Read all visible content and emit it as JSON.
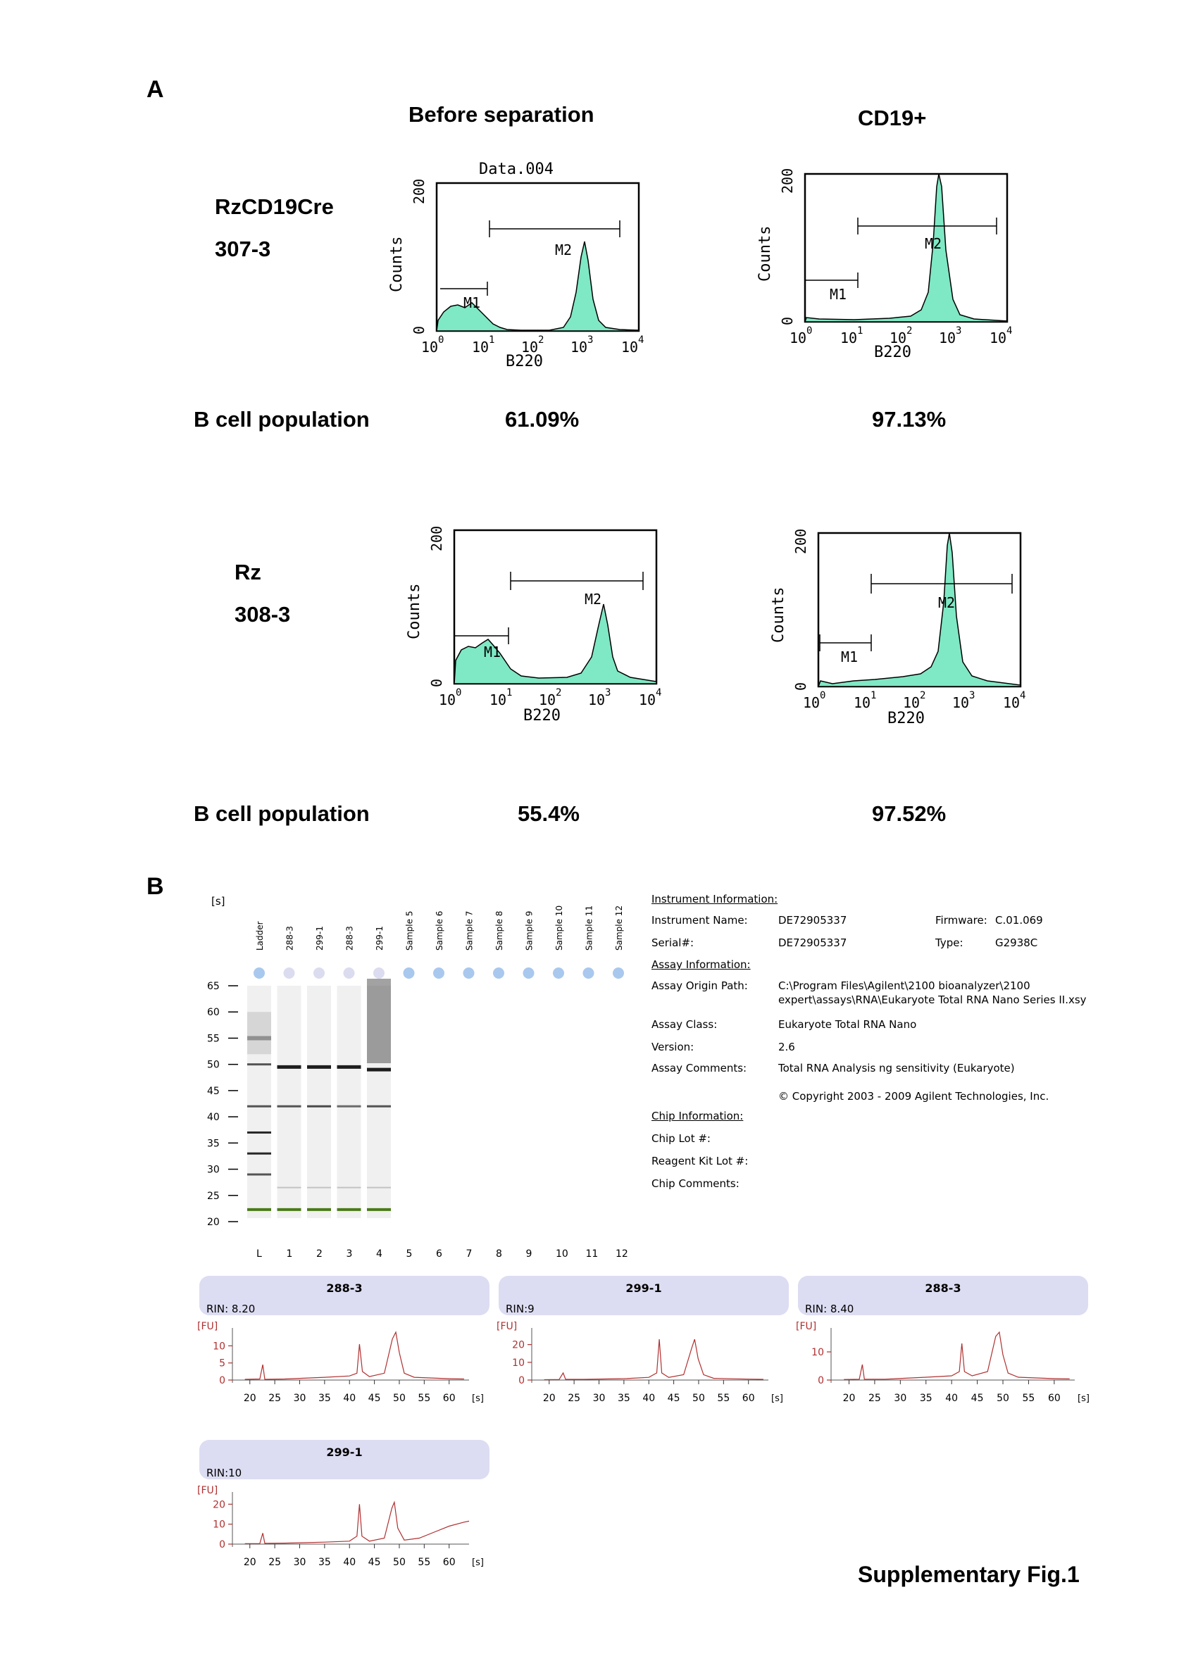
{
  "panel_a": {
    "label": "A",
    "col_before": "Before separation",
    "col_after": "CD19+",
    "row1": {
      "name": "RzCD19Cre",
      "id": "307-3",
      "population_label": "B cell population",
      "before_pct": "61.09%",
      "after_pct": "97.13%"
    },
    "row2": {
      "name": "Rz",
      "id": "308-3",
      "population_label": "B cell population",
      "before_pct": "55.4%",
      "after_pct": "97.52%"
    },
    "histogram": {
      "title": "Data.004",
      "ylabel": "Counts",
      "xlabel": "B220",
      "y_ticks": [
        "0",
        "200"
      ],
      "x_ticks": [
        "10",
        "10",
        "10",
        "10",
        "10"
      ],
      "x_exponents": [
        "0",
        "1",
        "2",
        "3",
        "4"
      ],
      "gate1": "M1",
      "gate2": "M2",
      "fill_color": "#7fe8c4"
    }
  },
  "panel_b": {
    "label": "B",
    "gel": {
      "unit": "[s]",
      "lanes": [
        "Ladder",
        "288-3",
        "299-1",
        "288-3",
        "299-1",
        "Sample 5",
        "Sample 6",
        "Sample 7",
        "Sample 8",
        "Sample 9",
        "Sample 10",
        "Sample 11",
        "Sample 12"
      ],
      "lane_numbers": [
        "L",
        "1",
        "2",
        "3",
        "4",
        "5",
        "6",
        "7",
        "8",
        "9",
        "10",
        "11",
        "12"
      ],
      "y_ticks": [
        "65",
        "60",
        "55",
        "50",
        "45",
        "40",
        "35",
        "30",
        "25",
        "20"
      ]
    },
    "instrument": {
      "heading": "Instrument Information:",
      "name_label": "Instrument Name:",
      "name_value": "DE72905337",
      "serial_label": "Serial#:",
      "serial_value": "DE72905337",
      "firmware_label": "Firmware:",
      "firmware_value": "C.01.069",
      "type_label": "Type:",
      "type_value": "G2938C"
    },
    "assay": {
      "heading": "Assay Information:",
      "origin_label": "Assay Origin Path:",
      "origin_value_1": "C:\\Program Files\\Agilent\\2100 bioanalyzer\\2100",
      "origin_value_2": "expert\\assays\\RNA\\Eukaryote Total RNA Nano Series II.xsy",
      "class_label": "Assay Class:",
      "class_value": "Eukaryote Total RNA Nano",
      "version_label": "Version:",
      "version_value": "2.6",
      "comments_label": "Assay Comments:",
      "comments_value": "Total RNA Analysis ng sensitivity (Eukaryote)",
      "copyright": "© Copyright 2003 - 2009 Agilent Technologies, Inc."
    },
    "chip": {
      "heading": "Chip Information:",
      "lot_label": "Chip Lot #:",
      "reagent_label": "Reagent Kit Lot #:",
      "comments_label": "Chip Comments:"
    },
    "electropherograms": [
      {
        "title": "288-3",
        "rin": "RIN: 8.20",
        "y_ticks": [
          "0",
          "5",
          "10"
        ],
        "ymax": 14
      },
      {
        "title": "299-1",
        "rin": "RIN:9",
        "y_ticks": [
          "0",
          "10",
          "20"
        ],
        "ymax": 27
      },
      {
        "title": "288-3",
        "rin": "RIN: 8.40",
        "y_ticks": [
          "0",
          "10"
        ],
        "ymax": 17
      },
      {
        "title": "299-1",
        "rin": "RIN:10",
        "y_ticks": [
          "0",
          "10",
          "20"
        ],
        "ymax": 24
      }
    ],
    "ep_axis": {
      "unit_y": "[FU]",
      "unit_x": "[s]",
      "x_ticks": [
        "20",
        "25",
        "30",
        "35",
        "40",
        "45",
        "50",
        "55",
        "60"
      ]
    }
  },
  "caption": "Supplementary Fig.1"
}
